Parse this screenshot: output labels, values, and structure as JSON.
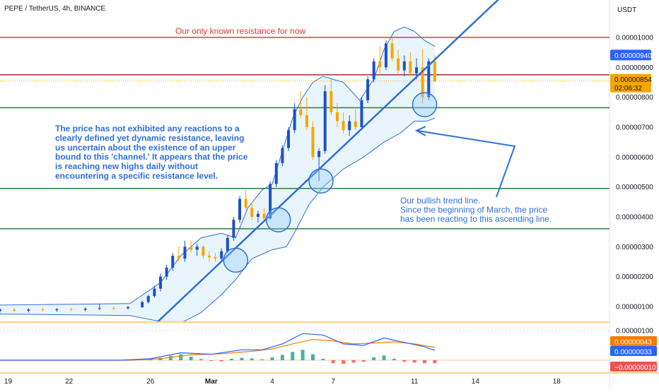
{
  "header": {
    "symbol_title": "PEPE / TetherUS, 4h, BINANCE",
    "currency": "USDT"
  },
  "annotations": {
    "resistance_label": "Our only known resistance for now",
    "channel_note": [
      "The price has not exhibited any reactions to a",
      "clearly defined yet dynamic resistance, leaving",
      "us uncertain about the existence of an upper",
      "bound to this 'channel.' It appears that the price",
      "is reaching new highs daily without",
      "encountering a specific resistance level."
    ],
    "trend_note": [
      "Our bullish trend line.",
      "Since the beginning of March, the price",
      "has been reacting to this ascending line."
    ]
  },
  "price_axis": {
    "ticks": [
      "0.00001000",
      "0.00000900",
      "0.00000800",
      "0.00000700",
      "0.00000600",
      "0.00000500",
      "0.00000400",
      "0.00000300",
      "0.00000200",
      "0.00000100"
    ],
    "badges": [
      {
        "text": "0.00000940",
        "value": 9.4,
        "color": "#2962ff",
        "text_color": "#ffffff"
      },
      {
        "text": "0.00000854",
        "value": 8.54,
        "color": "#f7a600",
        "text_color": "#131722"
      },
      {
        "text": "02:06:32",
        "value": 8.54,
        "color": "#f7a600",
        "text_color": "#131722"
      }
    ]
  },
  "indicator_axis": {
    "ticks": [
      "0.00000100"
    ],
    "badges": [
      {
        "text": "0.00000043",
        "color": "#f57c00",
        "text_color": "#ffffff"
      },
      {
        "text": "0.00000033",
        "color": "#2962ff",
        "text_color": "#ffffff"
      },
      {
        "text": "−0.00000010",
        "color": "#ef5350",
        "text_color": "#ffffff"
      }
    ]
  },
  "time_axis": {
    "labels": [
      {
        "text": "19",
        "day": 19
      },
      {
        "text": "22",
        "day": 22
      },
      {
        "text": "26",
        "day": 26
      },
      {
        "text": "Mar",
        "day": 29
      },
      {
        "text": "4",
        "day": 32
      },
      {
        "text": "7",
        "day": 35
      },
      {
        "text": "11",
        "day": 39
      },
      {
        "text": "14",
        "day": 42
      },
      {
        "text": "18",
        "day": 46
      }
    ]
  },
  "chart_data": {
    "type": "candlestick",
    "title": "PEPE / TetherUS, 4h, BINANCE",
    "y_unit": "USDT",
    "y_scale_note": "prices in units of 1e-6 USDT",
    "ylim": [
      0.0,
      10.8
    ],
    "xlim_days": [
      18.6,
      48.6
    ],
    "horizontal_levels": [
      {
        "value": 10.0,
        "color": "#e53935",
        "label": "Our only known resistance for now"
      },
      {
        "value": 8.75,
        "color": "#a52a2a"
      },
      {
        "value": 7.65,
        "color": "#2e7d32"
      },
      {
        "value": 4.95,
        "color": "#2e7d32"
      },
      {
        "value": 3.6,
        "color": "#2e7d32"
      },
      {
        "value": 8.54,
        "color": "#f7a600",
        "style": "dotted"
      }
    ],
    "trend_line": {
      "from": {
        "day": 25.6,
        "price": 0.0
      },
      "to": {
        "day": 43.8,
        "price": 11.7
      },
      "color": "#2f6fd6"
    },
    "touch_points": [
      {
        "day": 30.2,
        "price": 2.55
      },
      {
        "day": 32.3,
        "price": 3.9
      },
      {
        "day": 34.4,
        "price": 5.2
      },
      {
        "day": 39.5,
        "price": 7.75
      }
    ],
    "bands": {
      "upper": [
        [
          18.6,
          1.05
        ],
        [
          25.0,
          1.1
        ],
        [
          26.5,
          1.8
        ],
        [
          27.5,
          2.7
        ],
        [
          28.5,
          3.3
        ],
        [
          29.5,
          3.45
        ],
        [
          30.2,
          3.3
        ],
        [
          30.8,
          4.3
        ],
        [
          31.5,
          4.9
        ],
        [
          32.0,
          5.1
        ],
        [
          32.5,
          6.2
        ],
        [
          33.0,
          7.3
        ],
        [
          33.5,
          8.0
        ],
        [
          34.0,
          8.5
        ],
        [
          34.5,
          8.7
        ],
        [
          35.5,
          8.5
        ],
        [
          36.3,
          7.9
        ],
        [
          37.0,
          8.6
        ],
        [
          37.5,
          9.6
        ],
        [
          38.0,
          10.2
        ],
        [
          38.5,
          10.35
        ],
        [
          39.0,
          10.2
        ],
        [
          39.5,
          9.9
        ],
        [
          40.0,
          9.7
        ]
      ],
      "lower": [
        [
          18.6,
          0.75
        ],
        [
          25.0,
          0.7
        ],
        [
          26.5,
          0.5
        ],
        [
          27.5,
          0.45
        ],
        [
          28.5,
          0.8
        ],
        [
          29.5,
          1.4
        ],
        [
          30.2,
          1.9
        ],
        [
          31.0,
          2.6
        ],
        [
          32.0,
          2.9
        ],
        [
          32.7,
          3.0
        ],
        [
          33.2,
          3.6
        ],
        [
          33.8,
          4.4
        ],
        [
          34.5,
          5.0
        ],
        [
          35.5,
          5.6
        ],
        [
          36.5,
          6.0
        ],
        [
          37.5,
          6.5
        ],
        [
          38.3,
          6.8
        ],
        [
          39.0,
          7.2
        ],
        [
          39.6,
          7.2
        ],
        [
          40.0,
          7.3
        ]
      ]
    },
    "candles": [
      {
        "d": 18.6,
        "o": 0.85,
        "h": 0.95,
        "l": 0.8,
        "c": 0.9
      },
      {
        "d": 19.3,
        "o": 0.9,
        "h": 0.95,
        "l": 0.82,
        "c": 0.86
      },
      {
        "d": 20.0,
        "o": 0.86,
        "h": 0.94,
        "l": 0.8,
        "c": 0.9
      },
      {
        "d": 20.7,
        "o": 0.9,
        "h": 0.96,
        "l": 0.84,
        "c": 0.88
      },
      {
        "d": 21.4,
        "o": 0.88,
        "h": 0.95,
        "l": 0.82,
        "c": 0.91
      },
      {
        "d": 22.1,
        "o": 0.91,
        "h": 0.97,
        "l": 0.85,
        "c": 0.89
      },
      {
        "d": 22.8,
        "o": 0.89,
        "h": 0.98,
        "l": 0.84,
        "c": 0.93
      },
      {
        "d": 23.5,
        "o": 0.93,
        "h": 1.1,
        "l": 0.88,
        "c": 0.95
      },
      {
        "d": 24.2,
        "o": 0.95,
        "h": 1.0,
        "l": 0.88,
        "c": 0.94
      },
      {
        "d": 24.9,
        "o": 0.94,
        "h": 1.02,
        "l": 0.9,
        "c": 0.98
      },
      {
        "d": 25.6,
        "o": 0.98,
        "h": 1.2,
        "l": 0.95,
        "c": 1.15
      },
      {
        "d": 25.9,
        "o": 1.15,
        "h": 1.4,
        "l": 1.1,
        "c": 1.35
      },
      {
        "d": 26.2,
        "o": 1.35,
        "h": 1.7,
        "l": 1.3,
        "c": 1.6
      },
      {
        "d": 26.5,
        "o": 1.6,
        "h": 2.1,
        "l": 1.5,
        "c": 2.0
      },
      {
        "d": 26.8,
        "o": 2.0,
        "h": 2.4,
        "l": 1.9,
        "c": 2.3
      },
      {
        "d": 27.1,
        "o": 2.3,
        "h": 2.8,
        "l": 2.2,
        "c": 2.7
      },
      {
        "d": 27.4,
        "o": 2.7,
        "h": 3.0,
        "l": 2.5,
        "c": 2.6
      },
      {
        "d": 27.7,
        "o": 2.6,
        "h": 3.2,
        "l": 2.5,
        "c": 3.0
      },
      {
        "d": 28.0,
        "o": 3.0,
        "h": 3.2,
        "l": 2.8,
        "c": 2.9
      },
      {
        "d": 28.3,
        "o": 2.9,
        "h": 3.1,
        "l": 2.7,
        "c": 3.0
      },
      {
        "d": 28.6,
        "o": 3.0,
        "h": 3.05,
        "l": 2.6,
        "c": 2.7
      },
      {
        "d": 28.9,
        "o": 2.7,
        "h": 2.85,
        "l": 2.5,
        "c": 2.65
      },
      {
        "d": 29.2,
        "o": 2.65,
        "h": 2.8,
        "l": 2.5,
        "c": 2.6
      },
      {
        "d": 29.5,
        "o": 2.6,
        "h": 2.95,
        "l": 2.5,
        "c": 2.85
      },
      {
        "d": 29.8,
        "o": 2.85,
        "h": 3.4,
        "l": 2.8,
        "c": 3.3
      },
      {
        "d": 30.1,
        "o": 3.3,
        "h": 4.0,
        "l": 3.2,
        "c": 3.9
      },
      {
        "d": 30.4,
        "o": 3.9,
        "h": 4.7,
        "l": 3.8,
        "c": 4.6
      },
      {
        "d": 30.7,
        "o": 4.6,
        "h": 4.9,
        "l": 4.2,
        "c": 4.3
      },
      {
        "d": 31.0,
        "o": 4.3,
        "h": 4.5,
        "l": 3.9,
        "c": 4.0
      },
      {
        "d": 31.3,
        "o": 4.0,
        "h": 4.2,
        "l": 3.8,
        "c": 4.1
      },
      {
        "d": 31.6,
        "o": 4.1,
        "h": 4.3,
        "l": 3.85,
        "c": 3.95
      },
      {
        "d": 31.9,
        "o": 3.95,
        "h": 5.2,
        "l": 3.9,
        "c": 5.1
      },
      {
        "d": 32.2,
        "o": 5.1,
        "h": 5.9,
        "l": 5.0,
        "c": 5.8
      },
      {
        "d": 32.5,
        "o": 5.8,
        "h": 6.4,
        "l": 5.7,
        "c": 6.3
      },
      {
        "d": 32.8,
        "o": 6.3,
        "h": 7.0,
        "l": 6.2,
        "c": 6.9
      },
      {
        "d": 33.1,
        "o": 6.9,
        "h": 7.8,
        "l": 6.8,
        "c": 7.6
      },
      {
        "d": 33.4,
        "o": 7.6,
        "h": 8.2,
        "l": 7.3,
        "c": 7.4
      },
      {
        "d": 33.7,
        "o": 7.4,
        "h": 8.0,
        "l": 6.9,
        "c": 7.0
      },
      {
        "d": 34.0,
        "o": 7.0,
        "h": 7.2,
        "l": 5.9,
        "c": 6.0
      },
      {
        "d": 34.3,
        "o": 6.0,
        "h": 6.3,
        "l": 5.2,
        "c": 6.2
      },
      {
        "d": 34.6,
        "o": 6.2,
        "h": 8.4,
        "l": 6.1,
        "c": 8.2
      },
      {
        "d": 34.9,
        "o": 8.2,
        "h": 8.6,
        "l": 7.4,
        "c": 7.5
      },
      {
        "d": 35.2,
        "o": 7.5,
        "h": 7.8,
        "l": 7.0,
        "c": 7.2
      },
      {
        "d": 35.5,
        "o": 7.2,
        "h": 7.5,
        "l": 6.8,
        "c": 6.9
      },
      {
        "d": 35.8,
        "o": 6.9,
        "h": 7.4,
        "l": 6.7,
        "c": 7.2
      },
      {
        "d": 36.1,
        "o": 7.2,
        "h": 7.6,
        "l": 6.9,
        "c": 7.0
      },
      {
        "d": 36.4,
        "o": 7.0,
        "h": 8.0,
        "l": 6.9,
        "c": 7.9
      },
      {
        "d": 36.7,
        "o": 7.9,
        "h": 8.7,
        "l": 7.8,
        "c": 8.6
      },
      {
        "d": 37.0,
        "o": 8.6,
        "h": 9.3,
        "l": 8.5,
        "c": 9.2
      },
      {
        "d": 37.3,
        "o": 9.2,
        "h": 9.7,
        "l": 8.8,
        "c": 9.0
      },
      {
        "d": 37.6,
        "o": 9.0,
        "h": 9.9,
        "l": 8.9,
        "c": 9.8
      },
      {
        "d": 37.9,
        "o": 9.8,
        "h": 10.0,
        "l": 9.2,
        "c": 9.3
      },
      {
        "d": 38.2,
        "o": 9.3,
        "h": 9.6,
        "l": 8.8,
        "c": 8.9
      },
      {
        "d": 38.5,
        "o": 8.9,
        "h": 9.4,
        "l": 8.7,
        "c": 9.2
      },
      {
        "d": 38.8,
        "o": 9.2,
        "h": 9.5,
        "l": 8.7,
        "c": 8.8
      },
      {
        "d": 39.1,
        "o": 8.8,
        "h": 9.3,
        "l": 8.6,
        "c": 9.0
      },
      {
        "d": 39.4,
        "o": 9.0,
        "h": 9.6,
        "l": 7.8,
        "c": 8.0
      },
      {
        "d": 39.7,
        "o": 8.0,
        "h": 9.3,
        "l": 7.9,
        "c": 9.2
      },
      {
        "d": 40.0,
        "o": 9.2,
        "h": 9.4,
        "l": 8.5,
        "c": 8.54
      }
    ],
    "indicator": {
      "type": "macd",
      "ylim": [
        -0.3,
        1.2
      ],
      "macd_line": [
        [
          18.6,
          0.0
        ],
        [
          24.5,
          0.0
        ],
        [
          26.0,
          0.05
        ],
        [
          27.5,
          0.25
        ],
        [
          29.0,
          0.2
        ],
        [
          30.5,
          0.35
        ],
        [
          31.5,
          0.35
        ],
        [
          32.5,
          0.55
        ],
        [
          33.5,
          0.9
        ],
        [
          34.5,
          0.85
        ],
        [
          35.5,
          0.55
        ],
        [
          36.5,
          0.5
        ],
        [
          37.5,
          0.75
        ],
        [
          38.5,
          0.6
        ],
        [
          39.5,
          0.45
        ],
        [
          40.0,
          0.33
        ]
      ],
      "signal_line": [
        [
          18.6,
          0.0
        ],
        [
          25.0,
          0.0
        ],
        [
          26.5,
          0.05
        ],
        [
          28.0,
          0.18
        ],
        [
          29.5,
          0.22
        ],
        [
          31.0,
          0.3
        ],
        [
          32.0,
          0.38
        ],
        [
          33.0,
          0.55
        ],
        [
          34.0,
          0.7
        ],
        [
          35.0,
          0.65
        ],
        [
          36.0,
          0.55
        ],
        [
          37.0,
          0.58
        ],
        [
          38.0,
          0.62
        ],
        [
          39.0,
          0.55
        ],
        [
          40.0,
          0.43
        ]
      ],
      "histogram": [
        [
          26.0,
          0.03
        ],
        [
          26.5,
          0.08
        ],
        [
          27.0,
          0.15
        ],
        [
          27.5,
          0.2
        ],
        [
          28.0,
          0.12
        ],
        [
          28.5,
          0.04
        ],
        [
          29.0,
          -0.02
        ],
        [
          29.5,
          -0.04
        ],
        [
          30.0,
          0.05
        ],
        [
          30.5,
          0.08
        ],
        [
          31.0,
          0.06
        ],
        [
          31.5,
          0.03
        ],
        [
          32.0,
          0.1
        ],
        [
          32.5,
          0.18
        ],
        [
          33.0,
          0.28
        ],
        [
          33.5,
          0.35
        ],
        [
          34.0,
          0.2
        ],
        [
          34.5,
          0.05
        ],
        [
          35.0,
          -0.1
        ],
        [
          35.5,
          -0.12
        ],
        [
          36.0,
          -0.08
        ],
        [
          36.5,
          -0.05
        ],
        [
          37.0,
          0.1
        ],
        [
          37.5,
          0.16
        ],
        [
          38.0,
          0.05
        ],
        [
          38.5,
          -0.05
        ],
        [
          39.0,
          -0.08
        ],
        [
          39.5,
          -0.1
        ],
        [
          40.0,
          -0.1
        ]
      ],
      "level_line": 1.0
    }
  }
}
